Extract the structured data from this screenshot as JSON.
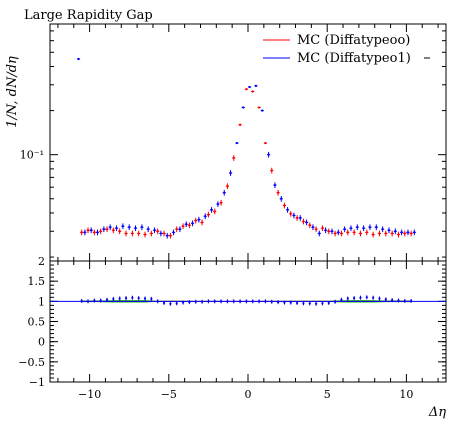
{
  "chart_data": [
    {
      "type": "scatter",
      "title": "Large Rapidity Gap",
      "ylabel": "1/N, dN/dη",
      "xlabel": "",
      "yscale": "log",
      "xlim": [
        -12.5,
        12.5
      ],
      "ylim": [
        0.0188,
        0.78
      ],
      "grid": false,
      "legend_position": "top-right",
      "yticks": [
        {
          "value": 0.1,
          "label": "10⁻¹"
        }
      ],
      "series": [
        {
          "name": "MC (Diffatypeoo)",
          "color": "#ff0000",
          "x": [
            -10.5,
            -10.1,
            -9.7,
            -9.3,
            -8.9,
            -8.5,
            -8.1,
            -7.7,
            -7.3,
            -6.9,
            -6.5,
            -6.1,
            -5.7,
            -5.3,
            -4.9,
            -4.5,
            -4.1,
            -3.7,
            -3.3,
            -2.9,
            -2.5,
            -2.1,
            -1.7,
            -1.3,
            -0.9,
            -0.5,
            -0.1,
            0.3,
            0.7,
            1.1,
            1.5,
            1.9,
            2.3,
            2.7,
            3.1,
            3.5,
            3.9,
            4.3,
            4.7,
            5.1,
            5.5,
            5.9,
            6.3,
            6.7,
            7.1,
            7.5,
            7.9,
            8.3,
            8.7,
            9.1,
            9.5,
            9.9,
            10.3
          ],
          "y": [
            0.0295,
            0.0305,
            0.0295,
            0.03,
            0.031,
            0.0305,
            0.03,
            0.029,
            0.029,
            0.029,
            0.0285,
            0.029,
            0.03,
            0.029,
            0.028,
            0.031,
            0.0325,
            0.033,
            0.0355,
            0.0345,
            0.039,
            0.041,
            0.047,
            0.061,
            0.095,
            0.16,
            0.28,
            0.27,
            0.21,
            0.12,
            0.078,
            0.055,
            0.045,
            0.0395,
            0.037,
            0.035,
            0.033,
            0.031,
            0.0315,
            0.03,
            0.029,
            0.029,
            0.0295,
            0.0295,
            0.029,
            0.0295,
            0.0285,
            0.029,
            0.029,
            0.029,
            0.0285,
            0.029,
            0.029
          ]
        },
        {
          "name": "MC (Diffatypeo1)",
          "color": "#0000ff",
          "x": [
            -10.7,
            -10.3,
            -9.9,
            -9.5,
            -9.1,
            -8.7,
            -8.3,
            -7.9,
            -7.5,
            -7.1,
            -6.7,
            -6.3,
            -5.9,
            -5.5,
            -5.1,
            -4.7,
            -4.3,
            -3.9,
            -3.5,
            -3.1,
            -2.7,
            -2.3,
            -1.9,
            -1.5,
            -1.1,
            -0.7,
            -0.3,
            0.1,
            0.5,
            0.9,
            1.3,
            1.7,
            2.1,
            2.5,
            2.9,
            3.3,
            3.7,
            4.1,
            4.5,
            4.9,
            5.3,
            5.7,
            6.1,
            6.5,
            6.9,
            7.3,
            7.7,
            8.1,
            8.5,
            8.9,
            9.3,
            9.7,
            10.1,
            10.5
          ],
          "y": [
            0.45,
            0.0295,
            0.0305,
            0.0295,
            0.031,
            0.032,
            0.0315,
            0.0325,
            0.032,
            0.0315,
            0.032,
            0.031,
            0.0305,
            0.029,
            0.028,
            0.0295,
            0.031,
            0.0335,
            0.034,
            0.036,
            0.038,
            0.042,
            0.046,
            0.055,
            0.075,
            0.12,
            0.21,
            0.29,
            0.295,
            0.2,
            0.1,
            0.062,
            0.05,
            0.042,
            0.0385,
            0.037,
            0.0345,
            0.032,
            0.029,
            0.0305,
            0.03,
            0.0295,
            0.031,
            0.0315,
            0.032,
            0.0315,
            0.032,
            0.032,
            0.031,
            0.0305,
            0.03,
            0.0295,
            0.0295,
            0.0295
          ]
        }
      ]
    },
    {
      "type": "scatter",
      "title": "",
      "xlabel": "Δη",
      "ylabel": "",
      "xlim": [
        -12.5,
        12.5
      ],
      "ylim": [
        -1,
        2
      ],
      "grid": false,
      "xticks": [
        -10,
        -5,
        0,
        5,
        10
      ],
      "yticks": [
        -1,
        -0.5,
        0,
        0.5,
        1,
        1.5,
        2
      ],
      "reference_line": 1,
      "band_color": "#00cc00",
      "band_halfwidth": [
        0.02,
        0.02,
        0.02,
        0.02,
        0.025,
        0.03,
        0.03,
        0.03,
        0.03,
        0.03,
        0.03,
        0.02,
        0.015,
        0.015,
        0.015,
        0.015,
        0.015,
        0.015,
        0.01,
        0.01,
        0.01,
        0.01,
        0.01,
        0.005,
        0.005,
        0.005,
        0.005,
        0.005,
        0.01,
        0.01,
        0.01,
        0.01,
        0.01,
        0.015,
        0.015,
        0.015,
        0.015,
        0.015,
        0.015,
        0.015,
        0.02,
        0.025,
        0.03,
        0.03,
        0.03,
        0.03,
        0.03,
        0.025,
        0.02,
        0.02,
        0.02,
        0.02,
        0.02
      ],
      "series": [
        {
          "name": "",
          "color": "#0000ff",
          "x": [
            -10.5,
            -10.1,
            -9.7,
            -9.3,
            -8.9,
            -8.5,
            -8.1,
            -7.7,
            -7.3,
            -6.9,
            -6.5,
            -6.1,
            -5.7,
            -5.3,
            -4.9,
            -4.5,
            -4.1,
            -3.7,
            -3.3,
            -2.9,
            -2.5,
            -2.1,
            -1.7,
            -1.3,
            -0.9,
            -0.5,
            -0.1,
            0.3,
            0.7,
            1.1,
            1.5,
            1.9,
            2.3,
            2.7,
            3.1,
            3.5,
            3.9,
            4.3,
            4.7,
            5.1,
            5.5,
            5.9,
            6.3,
            6.7,
            7.1,
            7.5,
            7.9,
            8.3,
            8.7,
            9.1,
            9.5,
            9.9,
            10.3
          ],
          "y": [
            1.01,
            1.0,
            1.02,
            1.02,
            1.04,
            1.06,
            1.07,
            1.08,
            1.09,
            1.08,
            1.07,
            1.06,
            1.0,
            0.96,
            0.94,
            0.95,
            0.97,
            0.98,
            0.99,
            0.99,
            1.0,
            1.0,
            1.0,
            1.0,
            1.0,
            1.0,
            1.0,
            1.0,
            1.0,
            1.0,
            0.99,
            0.98,
            0.97,
            0.97,
            0.96,
            0.95,
            0.95,
            0.94,
            0.95,
            0.96,
            0.99,
            1.04,
            1.07,
            1.08,
            1.09,
            1.1,
            1.09,
            1.07,
            1.05,
            1.03,
            1.02,
            1.01,
            1.01
          ]
        }
      ]
    }
  ]
}
